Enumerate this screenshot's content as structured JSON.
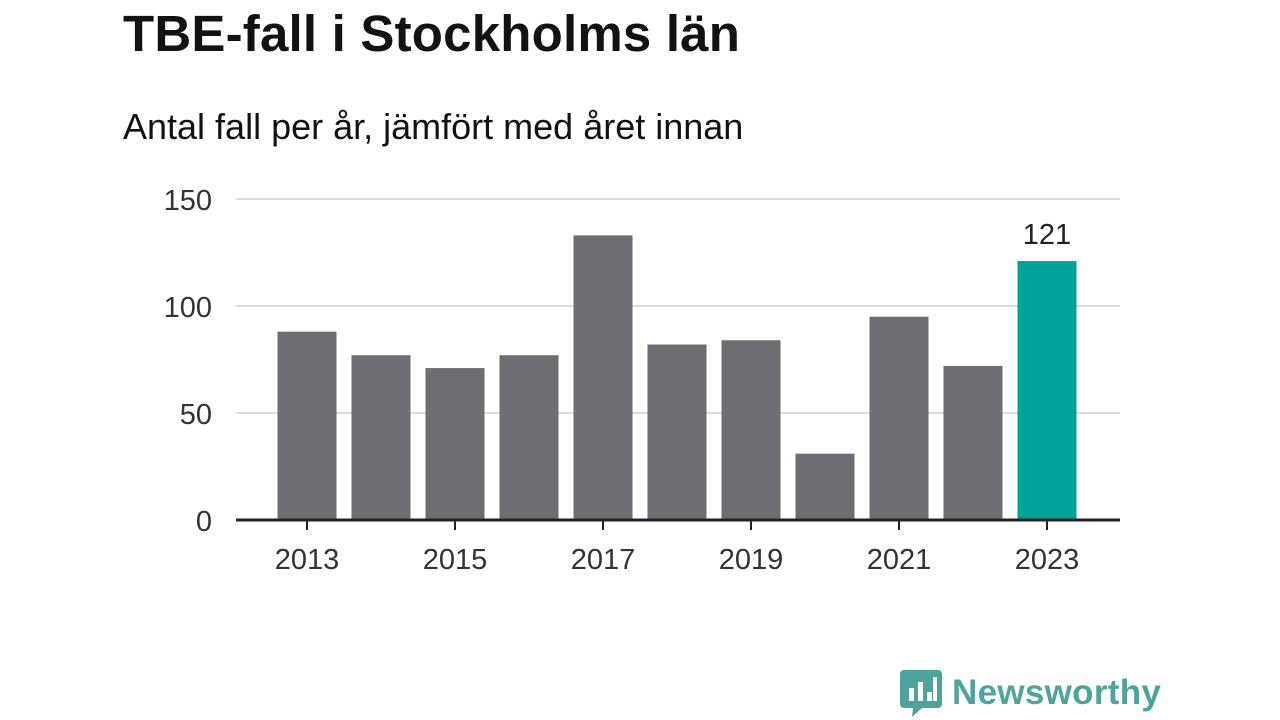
{
  "title": "TBE-fall i Stockholms län",
  "subtitle": "Antal fall per år, jämfört med året innan",
  "brand": {
    "name": "Newsworthy"
  },
  "colors": {
    "bar": "#6e6d74",
    "highlight": "#00a398",
    "grid": "#dddddd",
    "axis": "#222222",
    "text": "#333333",
    "brand": "#4ea39c"
  },
  "chart_data": {
    "type": "bar",
    "categories": [
      "2013",
      "2014",
      "2015",
      "2016",
      "2017",
      "2018",
      "2019",
      "2020",
      "2021",
      "2022",
      "2023"
    ],
    "values": [
      88,
      77,
      71,
      77,
      133,
      82,
      84,
      31,
      95,
      72,
      121
    ],
    "highlight_index": 10,
    "data_labels": [
      {
        "index": 10,
        "text": "121"
      }
    ],
    "x_tick_labels": [
      "2013",
      "2015",
      "2017",
      "2019",
      "2021",
      "2023"
    ],
    "y_ticks": [
      0,
      50,
      100,
      150
    ],
    "ylim": [
      0,
      150
    ],
    "grid": true,
    "legend": "none",
    "xlabel": "",
    "ylabel": ""
  }
}
